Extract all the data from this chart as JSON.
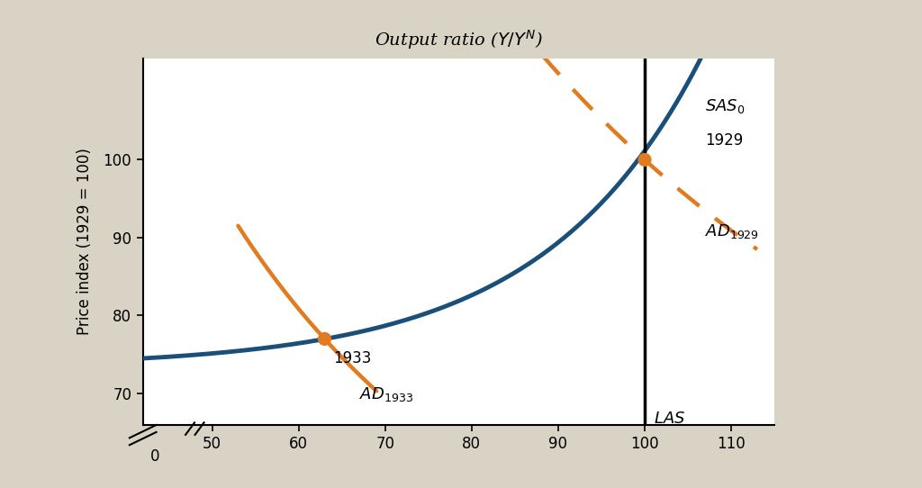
{
  "background_color": "#d8d3c5",
  "plot_bg_color": "#ffffff",
  "sas_color": "#1a4f7a",
  "ad_color": "#e07b20",
  "dot_color": "#e07b20",
  "lw_sas": 3.5,
  "lw_ad": 3.2,
  "dot_size": 100,
  "LAS_x": 100,
  "eq1929_x": 100,
  "eq1929_y": 100,
  "eq1933_x": 63,
  "eq1933_y": 77,
  "xlim": [
    42,
    115
  ],
  "ylim": [
    66,
    113
  ],
  "xticks": [
    50,
    60,
    70,
    80,
    90,
    100,
    110
  ],
  "yticks": [
    70,
    80,
    90,
    100
  ],
  "ylabel": "Price index (1929 = 100)",
  "title": "Output ratio ($Y/Y^N$)"
}
